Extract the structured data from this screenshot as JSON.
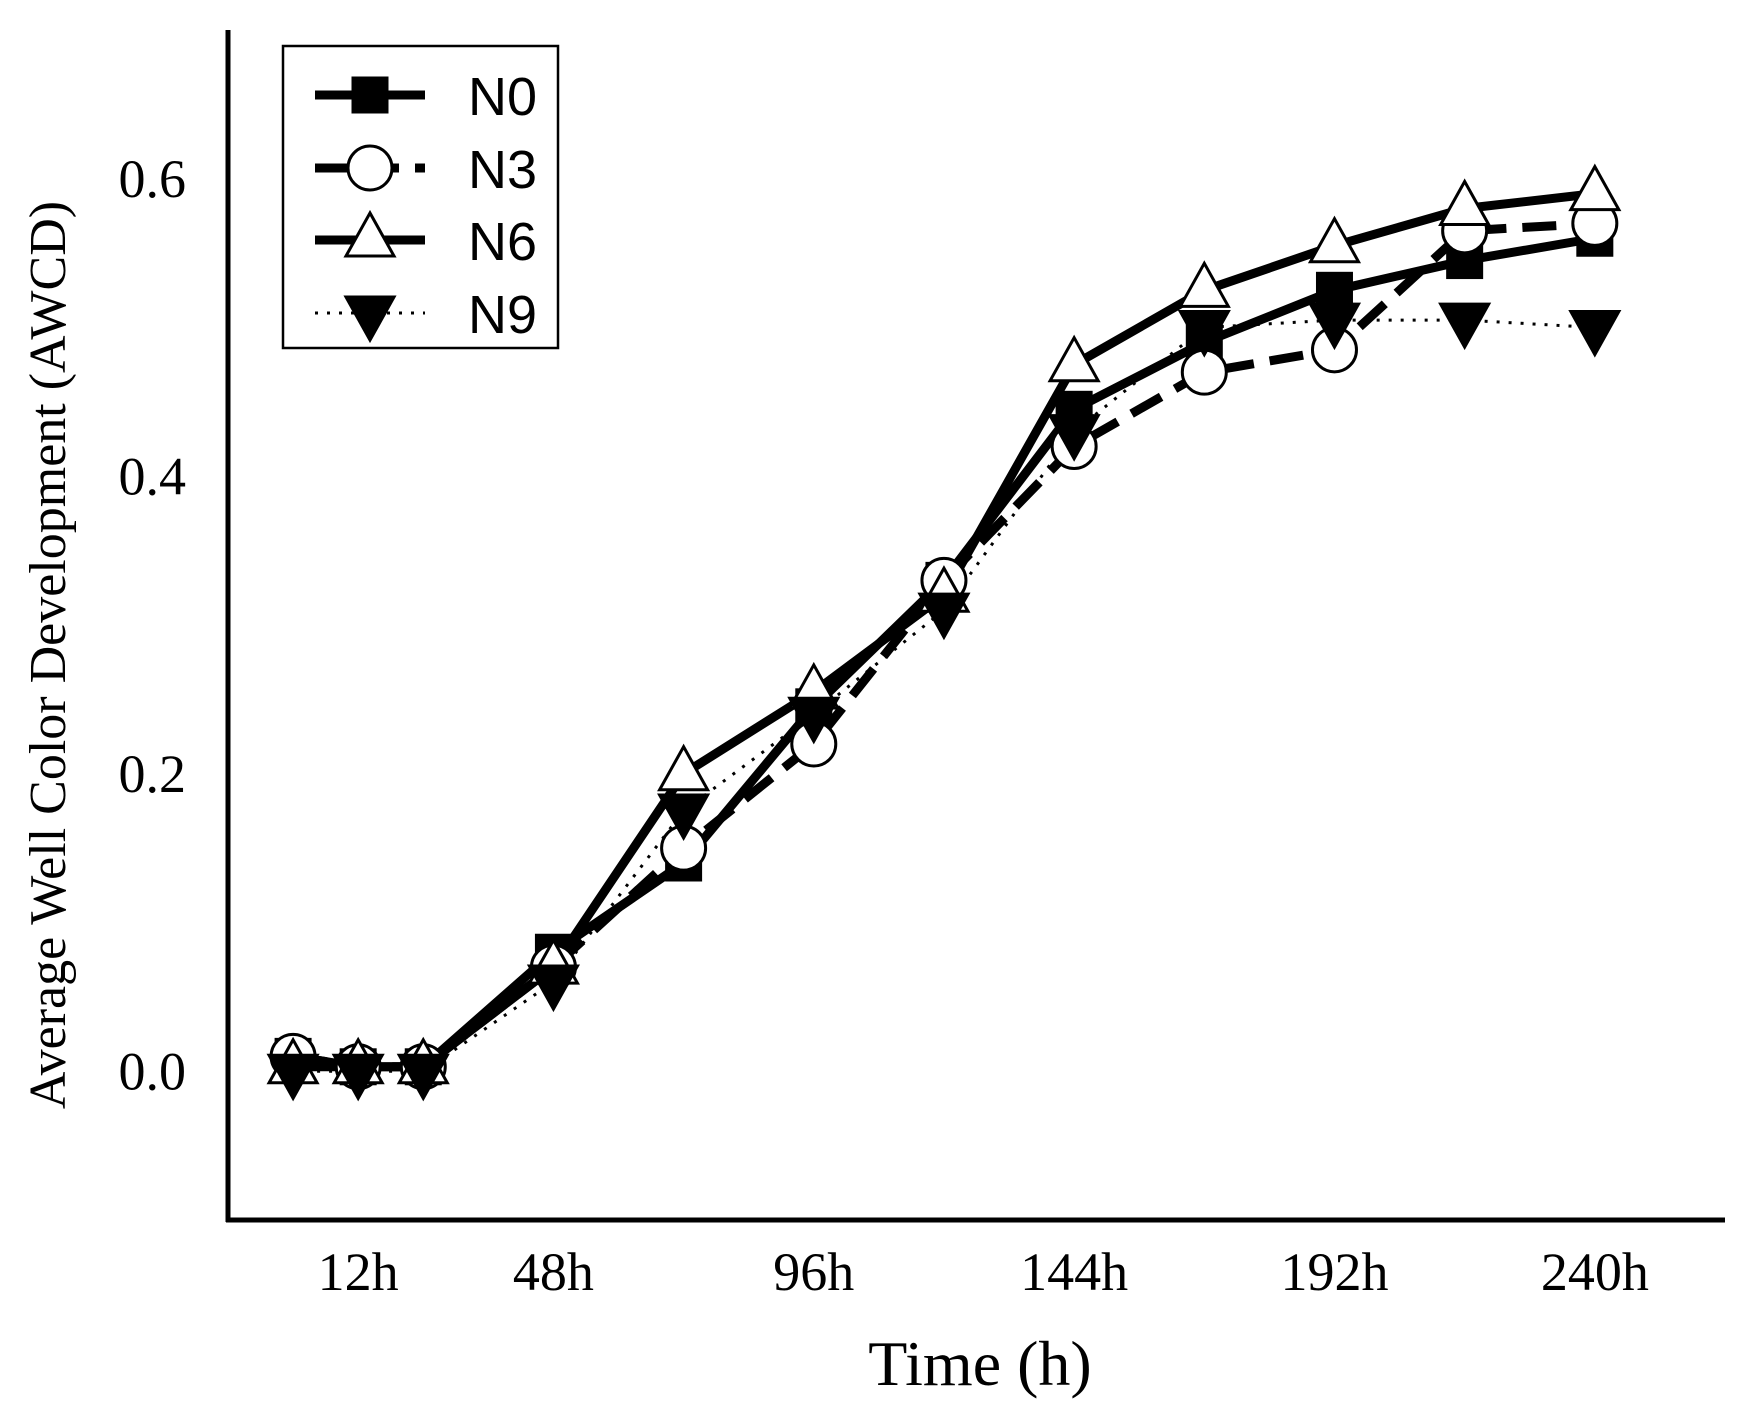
{
  "chart_data": {
    "type": "line",
    "title": "",
    "xlabel": "Time (h)",
    "ylabel": "Average Well Color Development (AWCD)",
    "x": [
      0,
      12,
      24,
      48,
      72,
      96,
      120,
      144,
      168,
      192,
      216,
      240
    ],
    "xticks": [
      {
        "value": 12,
        "label": "12h"
      },
      {
        "value": 48,
        "label": "48h"
      },
      {
        "value": 96,
        "label": "96h"
      },
      {
        "value": 144,
        "label": "144h"
      },
      {
        "value": 192,
        "label": "192h"
      },
      {
        "value": 240,
        "label": "240h"
      }
    ],
    "yticks": [
      {
        "value": 0.0,
        "label": "0.0"
      },
      {
        "value": 0.2,
        "label": "0.2"
      },
      {
        "value": 0.4,
        "label": "0.4"
      },
      {
        "value": 0.6,
        "label": "0.6"
      }
    ],
    "xlim": [
      -12,
      264
    ],
    "ylim": [
      -0.1,
      0.7
    ],
    "grid": false,
    "legend_position": "top-left",
    "series": [
      {
        "name": "N0",
        "marker": "square-filled",
        "line": "solid",
        "values": [
          0.01,
          0.003,
          0.003,
          0.08,
          0.14,
          0.245,
          0.33,
          0.445,
          0.49,
          0.525,
          0.545,
          0.56
        ]
      },
      {
        "name": "N3",
        "marker": "circle-open",
        "line": "dashed",
        "values": [
          0.01,
          0.003,
          0.003,
          0.07,
          0.15,
          0.22,
          0.33,
          0.42,
          0.47,
          0.485,
          0.565,
          0.57
        ]
      },
      {
        "name": "N6",
        "marker": "triangle-up-open",
        "line": "solid",
        "values": [
          0.003,
          0.003,
          0.003,
          0.07,
          0.2,
          0.255,
          0.32,
          0.475,
          0.525,
          0.555,
          0.58,
          0.59
        ]
      },
      {
        "name": "N9",
        "marker": "triangle-down-filled",
        "line": "dotted",
        "values": [
          0.0,
          0.0,
          0.0,
          0.06,
          0.175,
          0.24,
          0.31,
          0.43,
          0.5,
          0.505,
          0.505,
          0.5
        ]
      }
    ]
  }
}
